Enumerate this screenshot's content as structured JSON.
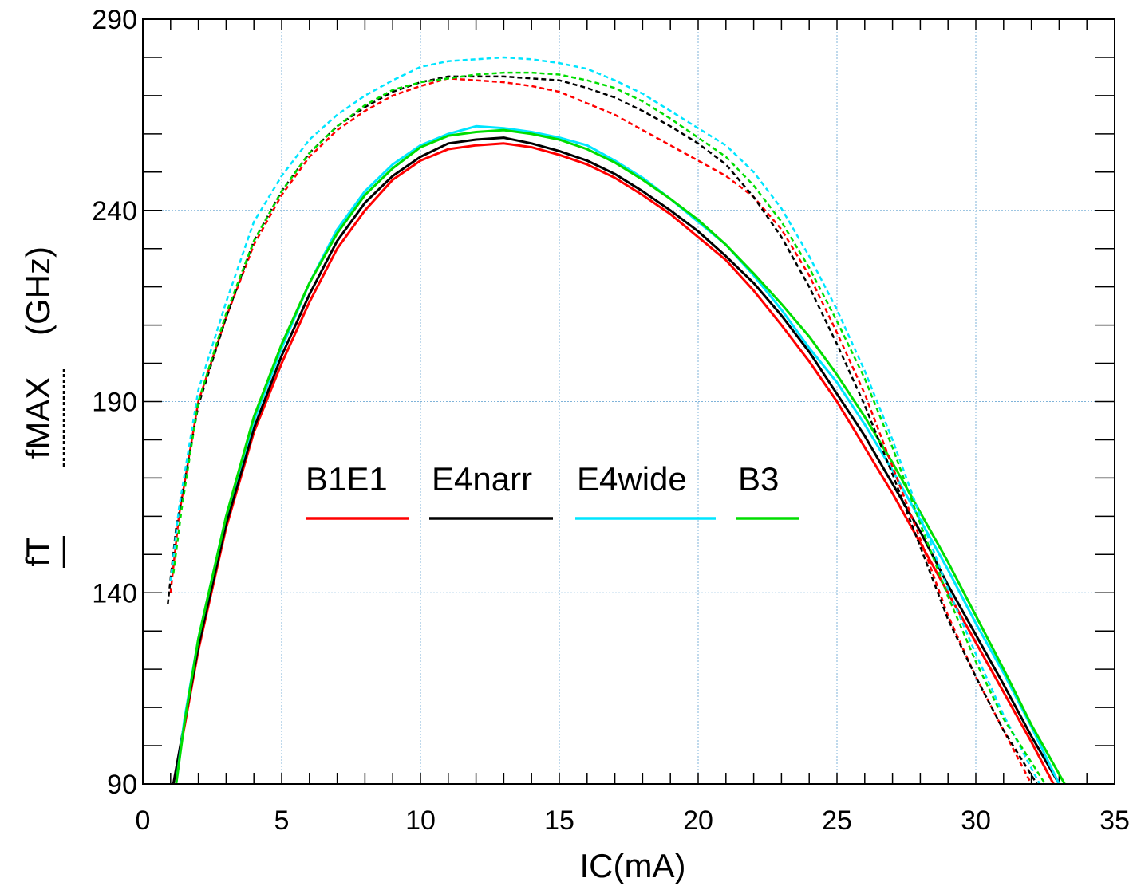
{
  "chart_data": {
    "type": "line",
    "xlabel": "IC(mA)",
    "ylabel": {
      "ft_label": "fT",
      "fmax_label": "fMAX",
      "unit": "(GHz)"
    },
    "xlim": [
      0,
      35
    ],
    "ylim": [
      90,
      290
    ],
    "xticks": [
      "0",
      "5",
      "10",
      "15",
      "20",
      "25",
      "30",
      "35"
    ],
    "yticks": [
      "90",
      "140",
      "190",
      "240",
      "290"
    ],
    "grid": true,
    "legend_placement": "center",
    "legend": [
      {
        "label": "B1E1",
        "color": "#ff0000"
      },
      {
        "label": "E4narr",
        "color": "#000000"
      },
      {
        "label": "E4wide",
        "color": "#00e5ff"
      },
      {
        "label": "B3",
        "color": "#00dd00"
      }
    ],
    "series": [
      {
        "name": "B1E1",
        "metric": "fT",
        "style": "solid",
        "color": "#ff0000",
        "points": [
          [
            1.1,
            90
          ],
          [
            1.5,
            105
          ],
          [
            2,
            125
          ],
          [
            3,
            157
          ],
          [
            4,
            182
          ],
          [
            5,
            200
          ],
          [
            6,
            216
          ],
          [
            7,
            230
          ],
          [
            8,
            240
          ],
          [
            9,
            248
          ],
          [
            10,
            253
          ],
          [
            11,
            256
          ],
          [
            12,
            257
          ],
          [
            13,
            257.5
          ],
          [
            14,
            256.5
          ],
          [
            15,
            254.5
          ],
          [
            16,
            252
          ],
          [
            17,
            248.5
          ],
          [
            18,
            244
          ],
          [
            19,
            239
          ],
          [
            20,
            233
          ],
          [
            21,
            227
          ],
          [
            22,
            219
          ],
          [
            23,
            210
          ],
          [
            24,
            200.5
          ],
          [
            25,
            190
          ],
          [
            26,
            178
          ],
          [
            27,
            166
          ],
          [
            28,
            153
          ],
          [
            29,
            140
          ],
          [
            30,
            127
          ],
          [
            31,
            114
          ],
          [
            32,
            101
          ],
          [
            32.8,
            90
          ]
        ]
      },
      {
        "name": "E4narr",
        "metric": "fT",
        "style": "solid",
        "color": "#000000",
        "points": [
          [
            1.1,
            90
          ],
          [
            1.5,
            106
          ],
          [
            2,
            126
          ],
          [
            3,
            158
          ],
          [
            4,
            183
          ],
          [
            5,
            202
          ],
          [
            6,
            218
          ],
          [
            7,
            232
          ],
          [
            8,
            242
          ],
          [
            9,
            249
          ],
          [
            10,
            254
          ],
          [
            11,
            257.5
          ],
          [
            12,
            258.5
          ],
          [
            13,
            259
          ],
          [
            14,
            257.5
          ],
          [
            15,
            255.5
          ],
          [
            16,
            253
          ],
          [
            17,
            249.5
          ],
          [
            18,
            245
          ],
          [
            19,
            240
          ],
          [
            20,
            234.5
          ],
          [
            21,
            228
          ],
          [
            22,
            221
          ],
          [
            23,
            212.5
          ],
          [
            24,
            203
          ],
          [
            25,
            192
          ],
          [
            26,
            181
          ],
          [
            27,
            168.5
          ],
          [
            28,
            156
          ],
          [
            29,
            142
          ],
          [
            30,
            129
          ],
          [
            31,
            116
          ],
          [
            32,
            102.5
          ],
          [
            33,
            90
          ]
        ]
      },
      {
        "name": "E4wide",
        "metric": "fT",
        "style": "solid",
        "color": "#00e5ff",
        "points": [
          [
            1.2,
            90
          ],
          [
            1.5,
            107
          ],
          [
            2,
            128
          ],
          [
            3,
            160
          ],
          [
            4,
            185
          ],
          [
            5,
            204
          ],
          [
            6,
            221
          ],
          [
            7,
            235
          ],
          [
            8,
            245
          ],
          [
            9,
            252
          ],
          [
            10,
            257
          ],
          [
            11,
            260
          ],
          [
            12,
            262
          ],
          [
            13,
            261.5
          ],
          [
            14,
            260.5
          ],
          [
            15,
            259
          ],
          [
            16,
            257
          ],
          [
            17,
            253
          ],
          [
            18,
            248.5
          ],
          [
            19,
            243
          ],
          [
            20,
            237
          ],
          [
            21,
            231
          ],
          [
            22,
            223
          ],
          [
            23,
            214
          ],
          [
            24,
            204
          ],
          [
            25,
            195
          ],
          [
            26,
            184
          ],
          [
            27,
            172
          ],
          [
            28,
            159
          ],
          [
            29,
            146
          ],
          [
            30,
            132
          ],
          [
            31,
            119
          ],
          [
            32,
            105
          ],
          [
            33,
            90
          ]
        ]
      },
      {
        "name": "B3",
        "metric": "fT",
        "style": "solid",
        "color": "#00dd00",
        "points": [
          [
            1.2,
            90
          ],
          [
            1.5,
            106
          ],
          [
            2,
            128
          ],
          [
            3,
            160
          ],
          [
            4,
            186
          ],
          [
            5,
            205
          ],
          [
            6,
            221
          ],
          [
            7,
            234
          ],
          [
            8,
            244
          ],
          [
            9,
            251
          ],
          [
            10,
            256.5
          ],
          [
            11,
            259.5
          ],
          [
            12,
            260.5
          ],
          [
            13,
            261
          ],
          [
            14,
            260
          ],
          [
            15,
            258.5
          ],
          [
            16,
            256
          ],
          [
            17,
            252.5
          ],
          [
            18,
            248
          ],
          [
            19,
            243
          ],
          [
            20,
            237.5
          ],
          [
            21,
            231
          ],
          [
            22,
            223.5
          ],
          [
            23,
            215.5
          ],
          [
            24,
            207
          ],
          [
            25,
            197
          ],
          [
            26,
            186
          ],
          [
            27,
            174
          ],
          [
            28,
            161
          ],
          [
            29,
            148
          ],
          [
            30,
            134
          ],
          [
            31,
            120
          ],
          [
            32,
            105.5
          ],
          [
            33.2,
            90
          ]
        ]
      },
      {
        "name": "B1E1",
        "metric": "fMAX",
        "style": "dashed",
        "color": "#ff0000",
        "points": [
          [
            1,
            140
          ],
          [
            1.3,
            160
          ],
          [
            2,
            190
          ],
          [
            3,
            212
          ],
          [
            4,
            231
          ],
          [
            5,
            244
          ],
          [
            6,
            254
          ],
          [
            7,
            261
          ],
          [
            8,
            266
          ],
          [
            9,
            270
          ],
          [
            10,
            272.5
          ],
          [
            11,
            274.5
          ],
          [
            12,
            274
          ],
          [
            13,
            273.5
          ],
          [
            14,
            272.5
          ],
          [
            15,
            271
          ],
          [
            16,
            268
          ],
          [
            17,
            265
          ],
          [
            18,
            261
          ],
          [
            19,
            257
          ],
          [
            20,
            253
          ],
          [
            21,
            249
          ],
          [
            22,
            243.5
          ],
          [
            23,
            235
          ],
          [
            24,
            223
          ],
          [
            25,
            208
          ],
          [
            26,
            192
          ],
          [
            27,
            173
          ],
          [
            28,
            154
          ],
          [
            29,
            134
          ],
          [
            30,
            118
          ],
          [
            31,
            104
          ],
          [
            32,
            90
          ]
        ]
      },
      {
        "name": "E4narr",
        "metric": "fMAX",
        "style": "dashed",
        "color": "#000000",
        "points": [
          [
            0.9,
            137
          ],
          [
            1.2,
            157
          ],
          [
            2,
            189
          ],
          [
            3,
            212
          ],
          [
            4,
            232
          ],
          [
            5,
            245
          ],
          [
            6,
            255
          ],
          [
            7,
            262
          ],
          [
            8,
            267
          ],
          [
            9,
            271
          ],
          [
            10,
            273.5
          ],
          [
            11,
            275
          ],
          [
            12,
            275
          ],
          [
            13,
            275
          ],
          [
            14,
            274.5
          ],
          [
            15,
            274
          ],
          [
            16,
            272
          ],
          [
            17,
            269.5
          ],
          [
            18,
            266
          ],
          [
            19,
            262
          ],
          [
            20,
            257.5
          ],
          [
            21,
            252
          ],
          [
            22,
            243.5
          ],
          [
            23,
            233
          ],
          [
            24,
            220
          ],
          [
            25,
            205
          ],
          [
            26,
            189
          ],
          [
            27,
            171
          ],
          [
            28,
            152
          ],
          [
            29,
            133
          ],
          [
            30,
            118
          ],
          [
            31,
            104
          ],
          [
            32.2,
            90
          ]
        ]
      },
      {
        "name": "E4wide",
        "metric": "fMAX",
        "style": "dashed",
        "color": "#00e5ff",
        "points": [
          [
            1,
            143
          ],
          [
            1.3,
            162
          ],
          [
            2,
            193
          ],
          [
            3,
            216
          ],
          [
            4,
            237
          ],
          [
            5,
            249
          ],
          [
            6,
            258.5
          ],
          [
            7,
            265
          ],
          [
            8,
            270
          ],
          [
            9,
            274
          ],
          [
            10,
            277.5
          ],
          [
            11,
            279
          ],
          [
            12,
            279.5
          ],
          [
            13,
            280
          ],
          [
            14,
            279.5
          ],
          [
            15,
            278.5
          ],
          [
            16,
            277
          ],
          [
            17,
            274
          ],
          [
            18,
            270.5
          ],
          [
            19,
            266
          ],
          [
            20,
            261.5
          ],
          [
            21,
            257
          ],
          [
            22,
            250
          ],
          [
            23,
            240.5
          ],
          [
            24,
            228
          ],
          [
            25,
            214
          ],
          [
            26,
            198
          ],
          [
            27,
            180
          ],
          [
            28,
            160
          ],
          [
            29,
            141
          ],
          [
            30,
            124
          ],
          [
            31,
            108
          ],
          [
            32.3,
            90
          ]
        ]
      },
      {
        "name": "B3",
        "metric": "fMAX",
        "style": "dashed",
        "color": "#00dd00",
        "points": [
          [
            1.1,
            145
          ],
          [
            1.4,
            162
          ],
          [
            2,
            190
          ],
          [
            3,
            213
          ],
          [
            4,
            232
          ],
          [
            5,
            245
          ],
          [
            6,
            255
          ],
          [
            7,
            262
          ],
          [
            8,
            267.5
          ],
          [
            9,
            271.5
          ],
          [
            10,
            273.5
          ],
          [
            11,
            274.5
          ],
          [
            12,
            275.5
          ],
          [
            13,
            276
          ],
          [
            14,
            276
          ],
          [
            15,
            275.5
          ],
          [
            16,
            274
          ],
          [
            17,
            272
          ],
          [
            18,
            268.5
          ],
          [
            19,
            264
          ],
          [
            20,
            259
          ],
          [
            21,
            254
          ],
          [
            22,
            246.5
          ],
          [
            23,
            237
          ],
          [
            24,
            225
          ],
          [
            25,
            211
          ],
          [
            26,
            196
          ],
          [
            27,
            178
          ],
          [
            28,
            158
          ],
          [
            29,
            139
          ],
          [
            30,
            122
          ],
          [
            31,
            107
          ],
          [
            32.5,
            90
          ]
        ]
      }
    ]
  }
}
